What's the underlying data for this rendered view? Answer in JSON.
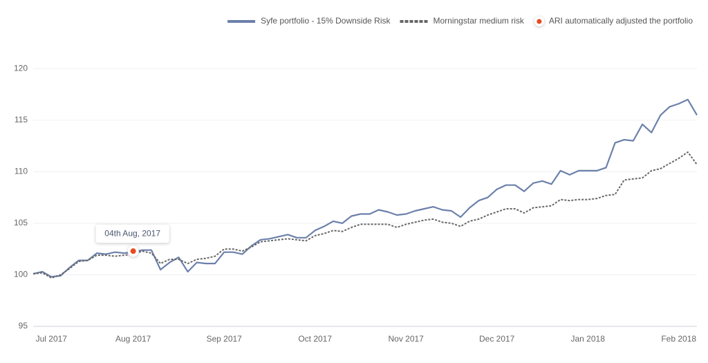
{
  "chart_data": {
    "type": "line",
    "categories": [
      null,
      null,
      "Jul 2017",
      null,
      null,
      null,
      null,
      null,
      null,
      null,
      null,
      "Aug 2017",
      null,
      null,
      null,
      null,
      null,
      null,
      null,
      null,
      null,
      "Sep 2017",
      null,
      null,
      null,
      null,
      null,
      null,
      null,
      null,
      null,
      "Oct 2017",
      null,
      null,
      null,
      null,
      null,
      null,
      null,
      null,
      null,
      "Nov 2017",
      null,
      null,
      null,
      null,
      null,
      null,
      null,
      null,
      null,
      "Dec 2017",
      null,
      null,
      null,
      null,
      null,
      null,
      null,
      null,
      null,
      "Jan 2018",
      null,
      null,
      null,
      null,
      null,
      null,
      null,
      null,
      null,
      "Feb 2018",
      null,
      null
    ],
    "series": [
      {
        "name": "Syfe portfolio - 15% Downside Risk",
        "color": "#6b80aa",
        "style": "solid",
        "values": [
          100.1,
          100.3,
          99.8,
          99.9,
          100.7,
          101.4,
          101.4,
          102.1,
          102.0,
          102.2,
          102.1,
          102.2,
          102.4,
          102.4,
          100.5,
          101.2,
          101.7,
          100.3,
          101.2,
          101.1,
          101.1,
          102.2,
          102.2,
          102.0,
          102.8,
          103.4,
          103.5,
          103.7,
          103.9,
          103.6,
          103.6,
          104.3,
          104.7,
          105.2,
          105.0,
          105.7,
          105.9,
          105.9,
          106.3,
          106.1,
          105.8,
          105.9,
          106.2,
          106.4,
          106.6,
          106.3,
          106.2,
          105.6,
          106.5,
          107.2,
          107.5,
          108.3,
          108.7,
          108.7,
          108.1,
          108.9,
          109.1,
          108.8,
          110.1,
          109.7,
          110.1,
          110.1,
          110.1,
          110.4,
          112.8,
          113.1,
          113.0,
          114.6,
          113.8,
          115.5,
          116.3,
          116.6,
          117.0,
          115.5
        ]
      },
      {
        "name": "Morningstar medium risk",
        "color": "#666666",
        "style": "dashed",
        "values": [
          100.1,
          100.2,
          99.7,
          100.0,
          100.6,
          101.3,
          101.4,
          101.9,
          101.9,
          101.8,
          101.9,
          102.0,
          102.3,
          102.1,
          101.1,
          101.5,
          101.5,
          101.1,
          101.5,
          101.6,
          101.8,
          102.5,
          102.5,
          102.3,
          102.7,
          103.2,
          103.3,
          103.4,
          103.5,
          103.4,
          103.3,
          103.8,
          104.0,
          104.3,
          104.2,
          104.6,
          104.9,
          104.9,
          104.9,
          104.9,
          104.6,
          104.9,
          105.1,
          105.3,
          105.4,
          105.1,
          105.0,
          104.7,
          105.2,
          105.4,
          105.8,
          106.1,
          106.4,
          106.4,
          106.0,
          106.5,
          106.6,
          106.7,
          107.3,
          107.2,
          107.3,
          107.3,
          107.4,
          107.7,
          107.8,
          109.2,
          109.3,
          109.4,
          110.1,
          110.3,
          110.8,
          111.3,
          111.9,
          110.7
        ]
      },
      {
        "name": "ARI automatically adjusted the portfolio",
        "color": "#e8491d",
        "style": "marker",
        "values": [
          null,
          null,
          null,
          null,
          null,
          null,
          null,
          null,
          null,
          null,
          null,
          102.3,
          null,
          null,
          null,
          null,
          null,
          null,
          null,
          null,
          null,
          null,
          null,
          null,
          null,
          null,
          null,
          null,
          null,
          null,
          null,
          null,
          null,
          null,
          null,
          null,
          null,
          null,
          null,
          null,
          null,
          null,
          null,
          null,
          null,
          null,
          null,
          null,
          null,
          null,
          null,
          null,
          null,
          null,
          null,
          null,
          null,
          null,
          null,
          null,
          null,
          null,
          null,
          null,
          null,
          null,
          null,
          null,
          null,
          null,
          null,
          null,
          null,
          null
        ],
        "value_labels": [
          null,
          null,
          null,
          null,
          null,
          null,
          null,
          null,
          null,
          null,
          null,
          "04th Aug, 2017",
          null,
          null,
          null,
          null,
          null,
          null,
          null,
          null,
          null,
          null,
          null,
          null,
          null,
          null,
          null,
          null,
          null,
          null,
          null,
          null,
          null,
          null,
          null,
          null,
          null,
          null,
          null,
          null,
          null,
          null,
          null,
          null,
          null,
          null,
          null,
          null,
          null,
          null,
          null,
          null,
          null,
          null,
          null,
          null,
          null,
          null,
          null,
          null,
          null,
          null,
          null,
          null,
          null,
          null,
          null,
          null,
          null,
          null,
          null,
          null,
          null,
          null
        ]
      }
    ],
    "ylim": [
      95,
      122.5
    ],
    "yticks": [
      95,
      100,
      105,
      110,
      115,
      120
    ],
    "grid": true,
    "legend": "top-right"
  }
}
